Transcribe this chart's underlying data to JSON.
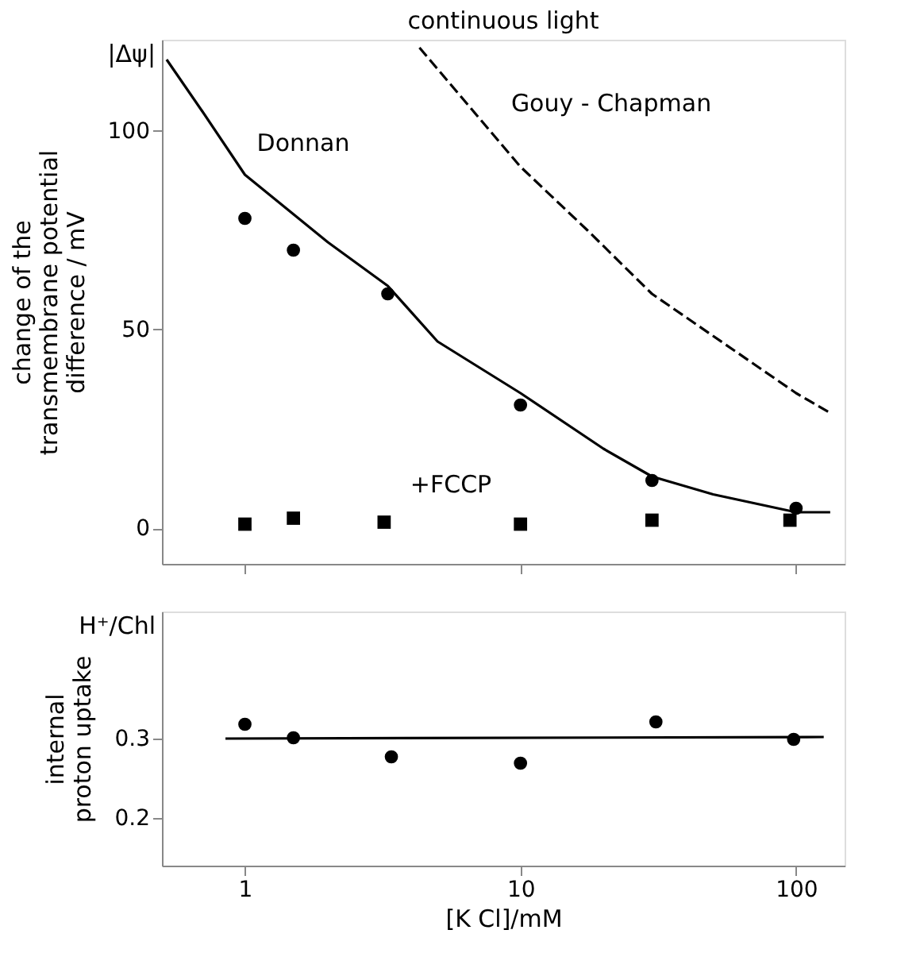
{
  "chart_data": [
    {
      "type": "scatter",
      "title": "continuous light",
      "ylabel": [
        "change of the",
        "transmembrane potential",
        "difference / mV"
      ],
      "log": "x",
      "xlim": [
        0.5,
        150
      ],
      "xticks": [
        1,
        10,
        100
      ],
      "ylim": [
        -9,
        123
      ],
      "yticks": [
        0,
        50,
        100
      ],
      "tick_labels": "y",
      "grid": false,
      "series": [
        {
          "type": "line",
          "line_style": "solid",
          "color": "#000000",
          "x": [
            0.52,
            0.7,
            1,
            2,
            3.3,
            5,
            10,
            20,
            30,
            50,
            100,
            133
          ],
          "values": [
            118,
            105,
            89,
            72,
            61,
            47,
            34,
            20,
            13,
            8.5,
            4,
            4
          ]
        },
        {
          "type": "line",
          "line_style": "dashed",
          "color": "#000000",
          "x": [
            4.3,
            10,
            17.5,
            30,
            100,
            133
          ],
          "values": [
            121,
            91,
            75,
            59,
            34,
            29
          ]
        },
        {
          "type": "scatter",
          "marker": "circle",
          "color": "#000000",
          "x": [
            1,
            1.5,
            3.3,
            10,
            30,
            100
          ],
          "values": [
            78,
            70,
            59,
            31,
            12,
            5
          ]
        },
        {
          "type": "scatter",
          "marker": "square",
          "color": "#000000",
          "x": [
            1,
            1.5,
            3.2,
            10,
            30,
            95
          ],
          "values": [
            1,
            2.5,
            1.5,
            1,
            2,
            2
          ]
        }
      ],
      "annotations": [
        "|Δψ|",
        "Donnan",
        "Gouy - Chapman",
        "+FCCP"
      ]
    },
    {
      "type": "scatter",
      "xlabel": "[K Cl]/mM",
      "ylabel": [
        "internal",
        "proton uptake"
      ],
      "log": "x",
      "xlim": [
        0.5,
        150
      ],
      "xticks": [
        1,
        10,
        100
      ],
      "ylim": [
        0.14,
        0.46
      ],
      "yticks": [
        0.2,
        0.3
      ],
      "grid": false,
      "series": [
        {
          "type": "line",
          "line_style": "solid",
          "color": "#000000",
          "x": [
            0.85,
            126
          ],
          "values": [
            0.3,
            0.302
          ]
        },
        {
          "type": "scatter",
          "marker": "circle",
          "color": "#000000",
          "x": [
            1,
            1.5,
            3.4,
            10,
            31,
            98
          ],
          "values": [
            0.318,
            0.301,
            0.277,
            0.269,
            0.321,
            0.299
          ]
        }
      ],
      "annotations": [
        "H⁺/Chl"
      ]
    }
  ]
}
